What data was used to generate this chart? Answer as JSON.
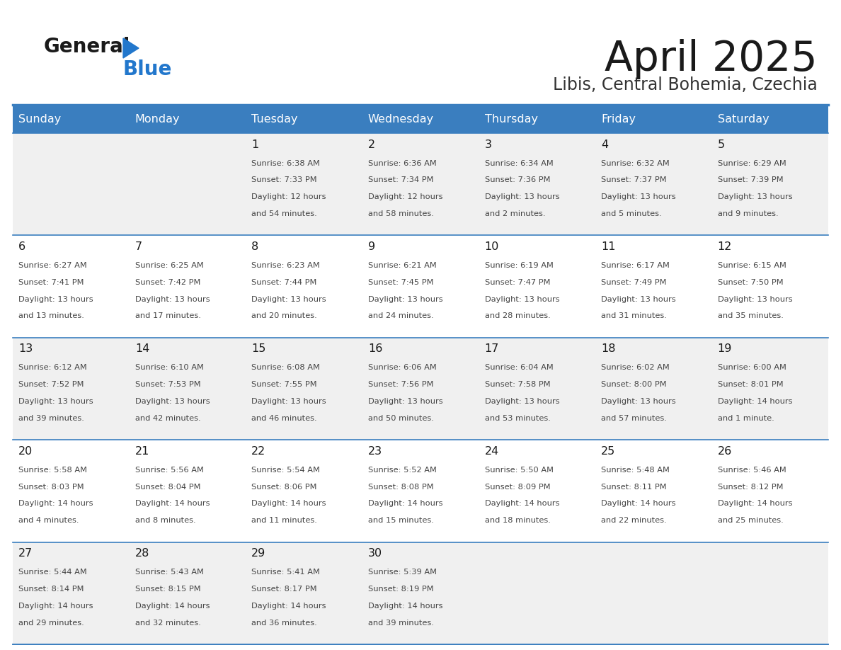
{
  "title": "April 2025",
  "subtitle": "Libis, Central Bohemia, Czechia",
  "header_bg_color": "#3a7ebf",
  "header_text_color": "#ffffff",
  "day_names": [
    "Sunday",
    "Monday",
    "Tuesday",
    "Wednesday",
    "Thursday",
    "Friday",
    "Saturday"
  ],
  "row_bg_even": "#f0f0f0",
  "row_bg_odd": "#ffffff",
  "cell_border_color": "#3a7ebf",
  "title_color": "#1a1a1a",
  "subtitle_color": "#333333",
  "day_number_color": "#1a1a1a",
  "cell_text_color": "#444444",
  "logo_general_color": "#1a1a1a",
  "logo_blue_color": "#2277cc",
  "logo_triangle_color": "#2277cc",
  "days": [
    {
      "day": 1,
      "col": 2,
      "row": 0,
      "sunrise": "6:38 AM",
      "sunset": "7:33 PM",
      "daylight_h": "12 hours",
      "daylight_m": "and 54 minutes."
    },
    {
      "day": 2,
      "col": 3,
      "row": 0,
      "sunrise": "6:36 AM",
      "sunset": "7:34 PM",
      "daylight_h": "12 hours",
      "daylight_m": "and 58 minutes."
    },
    {
      "day": 3,
      "col": 4,
      "row": 0,
      "sunrise": "6:34 AM",
      "sunset": "7:36 PM",
      "daylight_h": "13 hours",
      "daylight_m": "and 2 minutes."
    },
    {
      "day": 4,
      "col": 5,
      "row": 0,
      "sunrise": "6:32 AM",
      "sunset": "7:37 PM",
      "daylight_h": "13 hours",
      "daylight_m": "and 5 minutes."
    },
    {
      "day": 5,
      "col": 6,
      "row": 0,
      "sunrise": "6:29 AM",
      "sunset": "7:39 PM",
      "daylight_h": "13 hours",
      "daylight_m": "and 9 minutes."
    },
    {
      "day": 6,
      "col": 0,
      "row": 1,
      "sunrise": "6:27 AM",
      "sunset": "7:41 PM",
      "daylight_h": "13 hours",
      "daylight_m": "and 13 minutes."
    },
    {
      "day": 7,
      "col": 1,
      "row": 1,
      "sunrise": "6:25 AM",
      "sunset": "7:42 PM",
      "daylight_h": "13 hours",
      "daylight_m": "and 17 minutes."
    },
    {
      "day": 8,
      "col": 2,
      "row": 1,
      "sunrise": "6:23 AM",
      "sunset": "7:44 PM",
      "daylight_h": "13 hours",
      "daylight_m": "and 20 minutes."
    },
    {
      "day": 9,
      "col": 3,
      "row": 1,
      "sunrise": "6:21 AM",
      "sunset": "7:45 PM",
      "daylight_h": "13 hours",
      "daylight_m": "and 24 minutes."
    },
    {
      "day": 10,
      "col": 4,
      "row": 1,
      "sunrise": "6:19 AM",
      "sunset": "7:47 PM",
      "daylight_h": "13 hours",
      "daylight_m": "and 28 minutes."
    },
    {
      "day": 11,
      "col": 5,
      "row": 1,
      "sunrise": "6:17 AM",
      "sunset": "7:49 PM",
      "daylight_h": "13 hours",
      "daylight_m": "and 31 minutes."
    },
    {
      "day": 12,
      "col": 6,
      "row": 1,
      "sunrise": "6:15 AM",
      "sunset": "7:50 PM",
      "daylight_h": "13 hours",
      "daylight_m": "and 35 minutes."
    },
    {
      "day": 13,
      "col": 0,
      "row": 2,
      "sunrise": "6:12 AM",
      "sunset": "7:52 PM",
      "daylight_h": "13 hours",
      "daylight_m": "and 39 minutes."
    },
    {
      "day": 14,
      "col": 1,
      "row": 2,
      "sunrise": "6:10 AM",
      "sunset": "7:53 PM",
      "daylight_h": "13 hours",
      "daylight_m": "and 42 minutes."
    },
    {
      "day": 15,
      "col": 2,
      "row": 2,
      "sunrise": "6:08 AM",
      "sunset": "7:55 PM",
      "daylight_h": "13 hours",
      "daylight_m": "and 46 minutes."
    },
    {
      "day": 16,
      "col": 3,
      "row": 2,
      "sunrise": "6:06 AM",
      "sunset": "7:56 PM",
      "daylight_h": "13 hours",
      "daylight_m": "and 50 minutes."
    },
    {
      "day": 17,
      "col": 4,
      "row": 2,
      "sunrise": "6:04 AM",
      "sunset": "7:58 PM",
      "daylight_h": "13 hours",
      "daylight_m": "and 53 minutes."
    },
    {
      "day": 18,
      "col": 5,
      "row": 2,
      "sunrise": "6:02 AM",
      "sunset": "8:00 PM",
      "daylight_h": "13 hours",
      "daylight_m": "and 57 minutes."
    },
    {
      "day": 19,
      "col": 6,
      "row": 2,
      "sunrise": "6:00 AM",
      "sunset": "8:01 PM",
      "daylight_h": "14 hours",
      "daylight_m": "and 1 minute."
    },
    {
      "day": 20,
      "col": 0,
      "row": 3,
      "sunrise": "5:58 AM",
      "sunset": "8:03 PM",
      "daylight_h": "14 hours",
      "daylight_m": "and 4 minutes."
    },
    {
      "day": 21,
      "col": 1,
      "row": 3,
      "sunrise": "5:56 AM",
      "sunset": "8:04 PM",
      "daylight_h": "14 hours",
      "daylight_m": "and 8 minutes."
    },
    {
      "day": 22,
      "col": 2,
      "row": 3,
      "sunrise": "5:54 AM",
      "sunset": "8:06 PM",
      "daylight_h": "14 hours",
      "daylight_m": "and 11 minutes."
    },
    {
      "day": 23,
      "col": 3,
      "row": 3,
      "sunrise": "5:52 AM",
      "sunset": "8:08 PM",
      "daylight_h": "14 hours",
      "daylight_m": "and 15 minutes."
    },
    {
      "day": 24,
      "col": 4,
      "row": 3,
      "sunrise": "5:50 AM",
      "sunset": "8:09 PM",
      "daylight_h": "14 hours",
      "daylight_m": "and 18 minutes."
    },
    {
      "day": 25,
      "col": 5,
      "row": 3,
      "sunrise": "5:48 AM",
      "sunset": "8:11 PM",
      "daylight_h": "14 hours",
      "daylight_m": "and 22 minutes."
    },
    {
      "day": 26,
      "col": 6,
      "row": 3,
      "sunrise": "5:46 AM",
      "sunset": "8:12 PM",
      "daylight_h": "14 hours",
      "daylight_m": "and 25 minutes."
    },
    {
      "day": 27,
      "col": 0,
      "row": 4,
      "sunrise": "5:44 AM",
      "sunset": "8:14 PM",
      "daylight_h": "14 hours",
      "daylight_m": "and 29 minutes."
    },
    {
      "day": 28,
      "col": 1,
      "row": 4,
      "sunrise": "5:43 AM",
      "sunset": "8:15 PM",
      "daylight_h": "14 hours",
      "daylight_m": "and 32 minutes."
    },
    {
      "day": 29,
      "col": 2,
      "row": 4,
      "sunrise": "5:41 AM",
      "sunset": "8:17 PM",
      "daylight_h": "14 hours",
      "daylight_m": "and 36 minutes."
    },
    {
      "day": 30,
      "col": 3,
      "row": 4,
      "sunrise": "5:39 AM",
      "sunset": "8:19 PM",
      "daylight_h": "14 hours",
      "daylight_m": "and 39 minutes."
    }
  ]
}
